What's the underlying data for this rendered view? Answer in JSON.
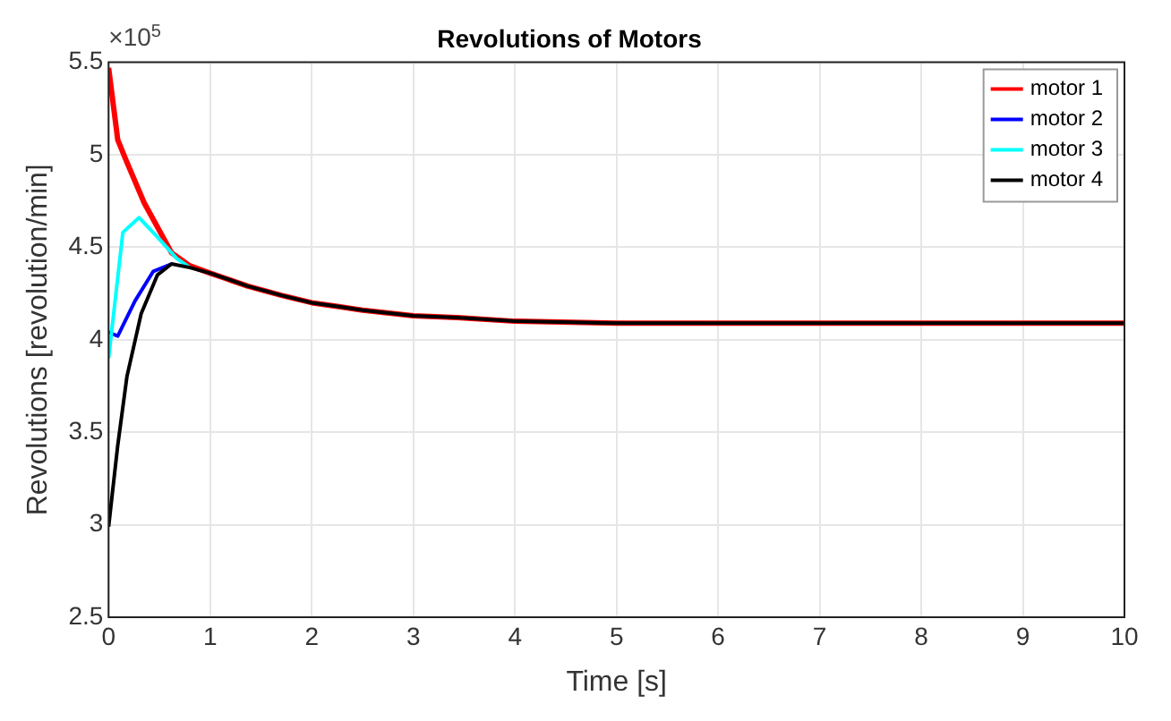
{
  "chart_data": {
    "type": "line",
    "title": "Revolutions of Motors",
    "xlabel": "Time [s]",
    "ylabel": "Revolutions [revolution/min]",
    "annotations": [
      "×10$^{5}$"
    ],
    "xlim": [
      0,
      10
    ],
    "xticks": [
      0,
      1,
      2,
      3,
      4,
      5,
      6,
      7,
      8,
      9,
      10
    ],
    "ylim": [
      2.5,
      5.5
    ],
    "yticks": [
      2.5,
      3,
      3.5,
      4,
      4.5,
      5,
      5.5
    ],
    "grid": true,
    "legend": "top right",
    "marker": "none",
    "line_style": "solid",
    "series": [
      {
        "name": "motor 1",
        "color": "#ff0000",
        "x": [
          0,
          0.09,
          0.18,
          0.35,
          0.62,
          0.8,
          1.0,
          1.37,
          1.7,
          2.0,
          2.25,
          2.5,
          3.0,
          3.43,
          4,
          5,
          6,
          7,
          8,
          10
        ],
        "values": [
          5.47,
          5.08,
          4.96,
          4.74,
          4.47,
          4.4,
          4.36,
          4.29,
          4.24,
          4.2,
          4.18,
          4.16,
          4.13,
          4.12,
          4.1,
          4.09,
          4.09,
          4.09,
          4.09,
          4.09
        ]
      },
      {
        "name": "motor 2",
        "color": "#0000ff",
        "x": [
          0,
          0.09,
          0.26,
          0.44,
          0.62
        ],
        "values": [
          4.04,
          4.02,
          4.21,
          4.37,
          4.41
        ]
      },
      {
        "name": "motor 3",
        "color": "#00ffff",
        "x": [
          0,
          0.14,
          0.3,
          0.49,
          0.67,
          0.8
        ],
        "values": [
          3.9,
          4.58,
          4.66,
          4.55,
          4.44,
          4.39
        ]
      },
      {
        "name": "motor 4",
        "color": "#000000",
        "x": [
          0,
          0.09,
          0.18,
          0.32,
          0.48,
          0.62,
          0.8,
          1.0,
          1.37,
          1.7,
          2.0,
          2.25,
          2.5,
          3.0,
          3.43,
          4,
          5,
          6,
          7,
          8,
          10
        ],
        "values": [
          2.99,
          3.43,
          3.8,
          4.14,
          4.35,
          4.41,
          4.39,
          4.36,
          4.29,
          4.24,
          4.2,
          4.18,
          4.16,
          4.13,
          4.12,
          4.1,
          4.09,
          4.09,
          4.09,
          4.09,
          4.09
        ]
      }
    ]
  }
}
